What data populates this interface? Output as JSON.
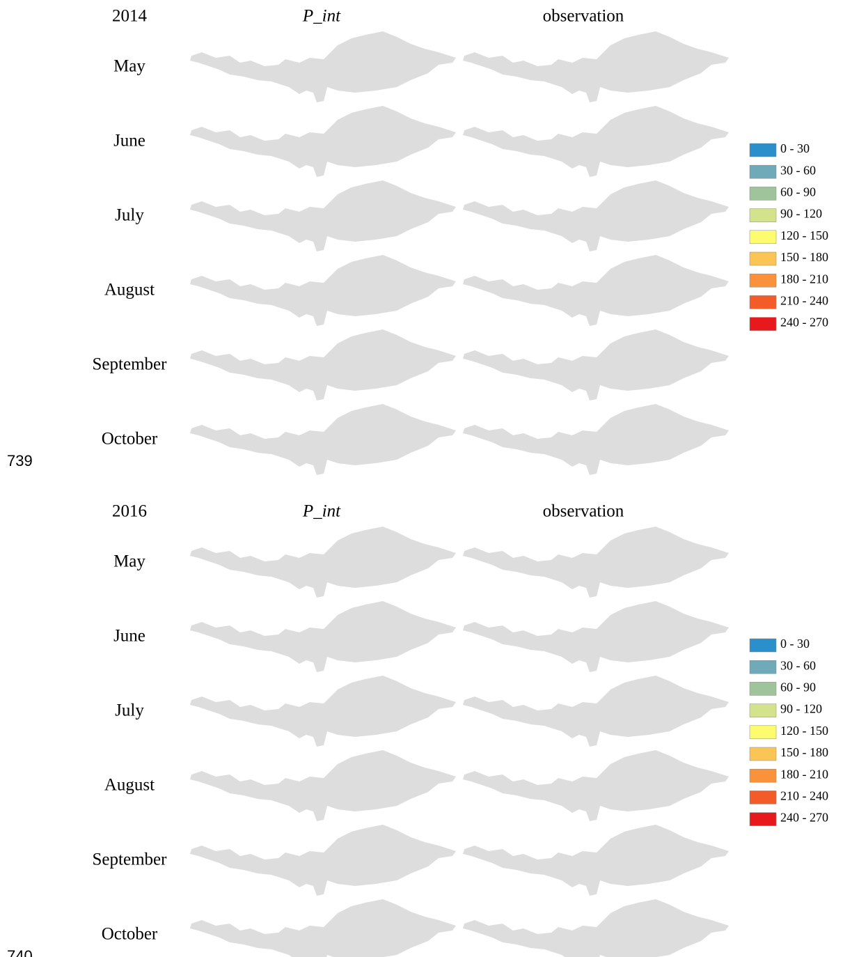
{
  "figures": [
    {
      "year": "2014",
      "columns": [
        "P_int",
        "observation"
      ],
      "months": [
        "May",
        "June",
        "July",
        "August",
        "September",
        "October"
      ],
      "legend": [
        {
          "label": "0 - 30",
          "color": "#2b8fcb"
        },
        {
          "label": "30 - 60",
          "color": "#70a9b8"
        },
        {
          "label": "60 - 90",
          "color": "#9fc49b"
        },
        {
          "label": "90 - 120",
          "color": "#d3e38b"
        },
        {
          "label": "120 - 150",
          "color": "#fcfc6e"
        },
        {
          "label": "150 - 180",
          "color": "#fbc556"
        },
        {
          "label": "180 - 210",
          "color": "#f9923b"
        },
        {
          "label": "210 - 240",
          "color": "#f35c28"
        },
        {
          "label": "240 - 270",
          "color": "#e8191c"
        }
      ],
      "line_number": "739"
    },
    {
      "year": "2016",
      "columns": [
        "P_int",
        "observation"
      ],
      "months": [
        "May",
        "June",
        "July",
        "August",
        "September",
        "October"
      ],
      "legend": [
        {
          "label": "0 - 30",
          "color": "#2b8fcb"
        },
        {
          "label": "30 - 60",
          "color": "#70a9b8"
        },
        {
          "label": "60 - 90",
          "color": "#9fc49b"
        },
        {
          "label": "90 - 120",
          "color": "#d3e38b"
        },
        {
          "label": "120 - 150",
          "color": "#fcfc6e"
        },
        {
          "label": "150 - 180",
          "color": "#fbc556"
        },
        {
          "label": "180 - 210",
          "color": "#f9923b"
        },
        {
          "label": "210 - 240",
          "color": "#f35c28"
        },
        {
          "label": "240 - 270",
          "color": "#e8191c"
        }
      ],
      "line_number": "740"
    }
  ]
}
